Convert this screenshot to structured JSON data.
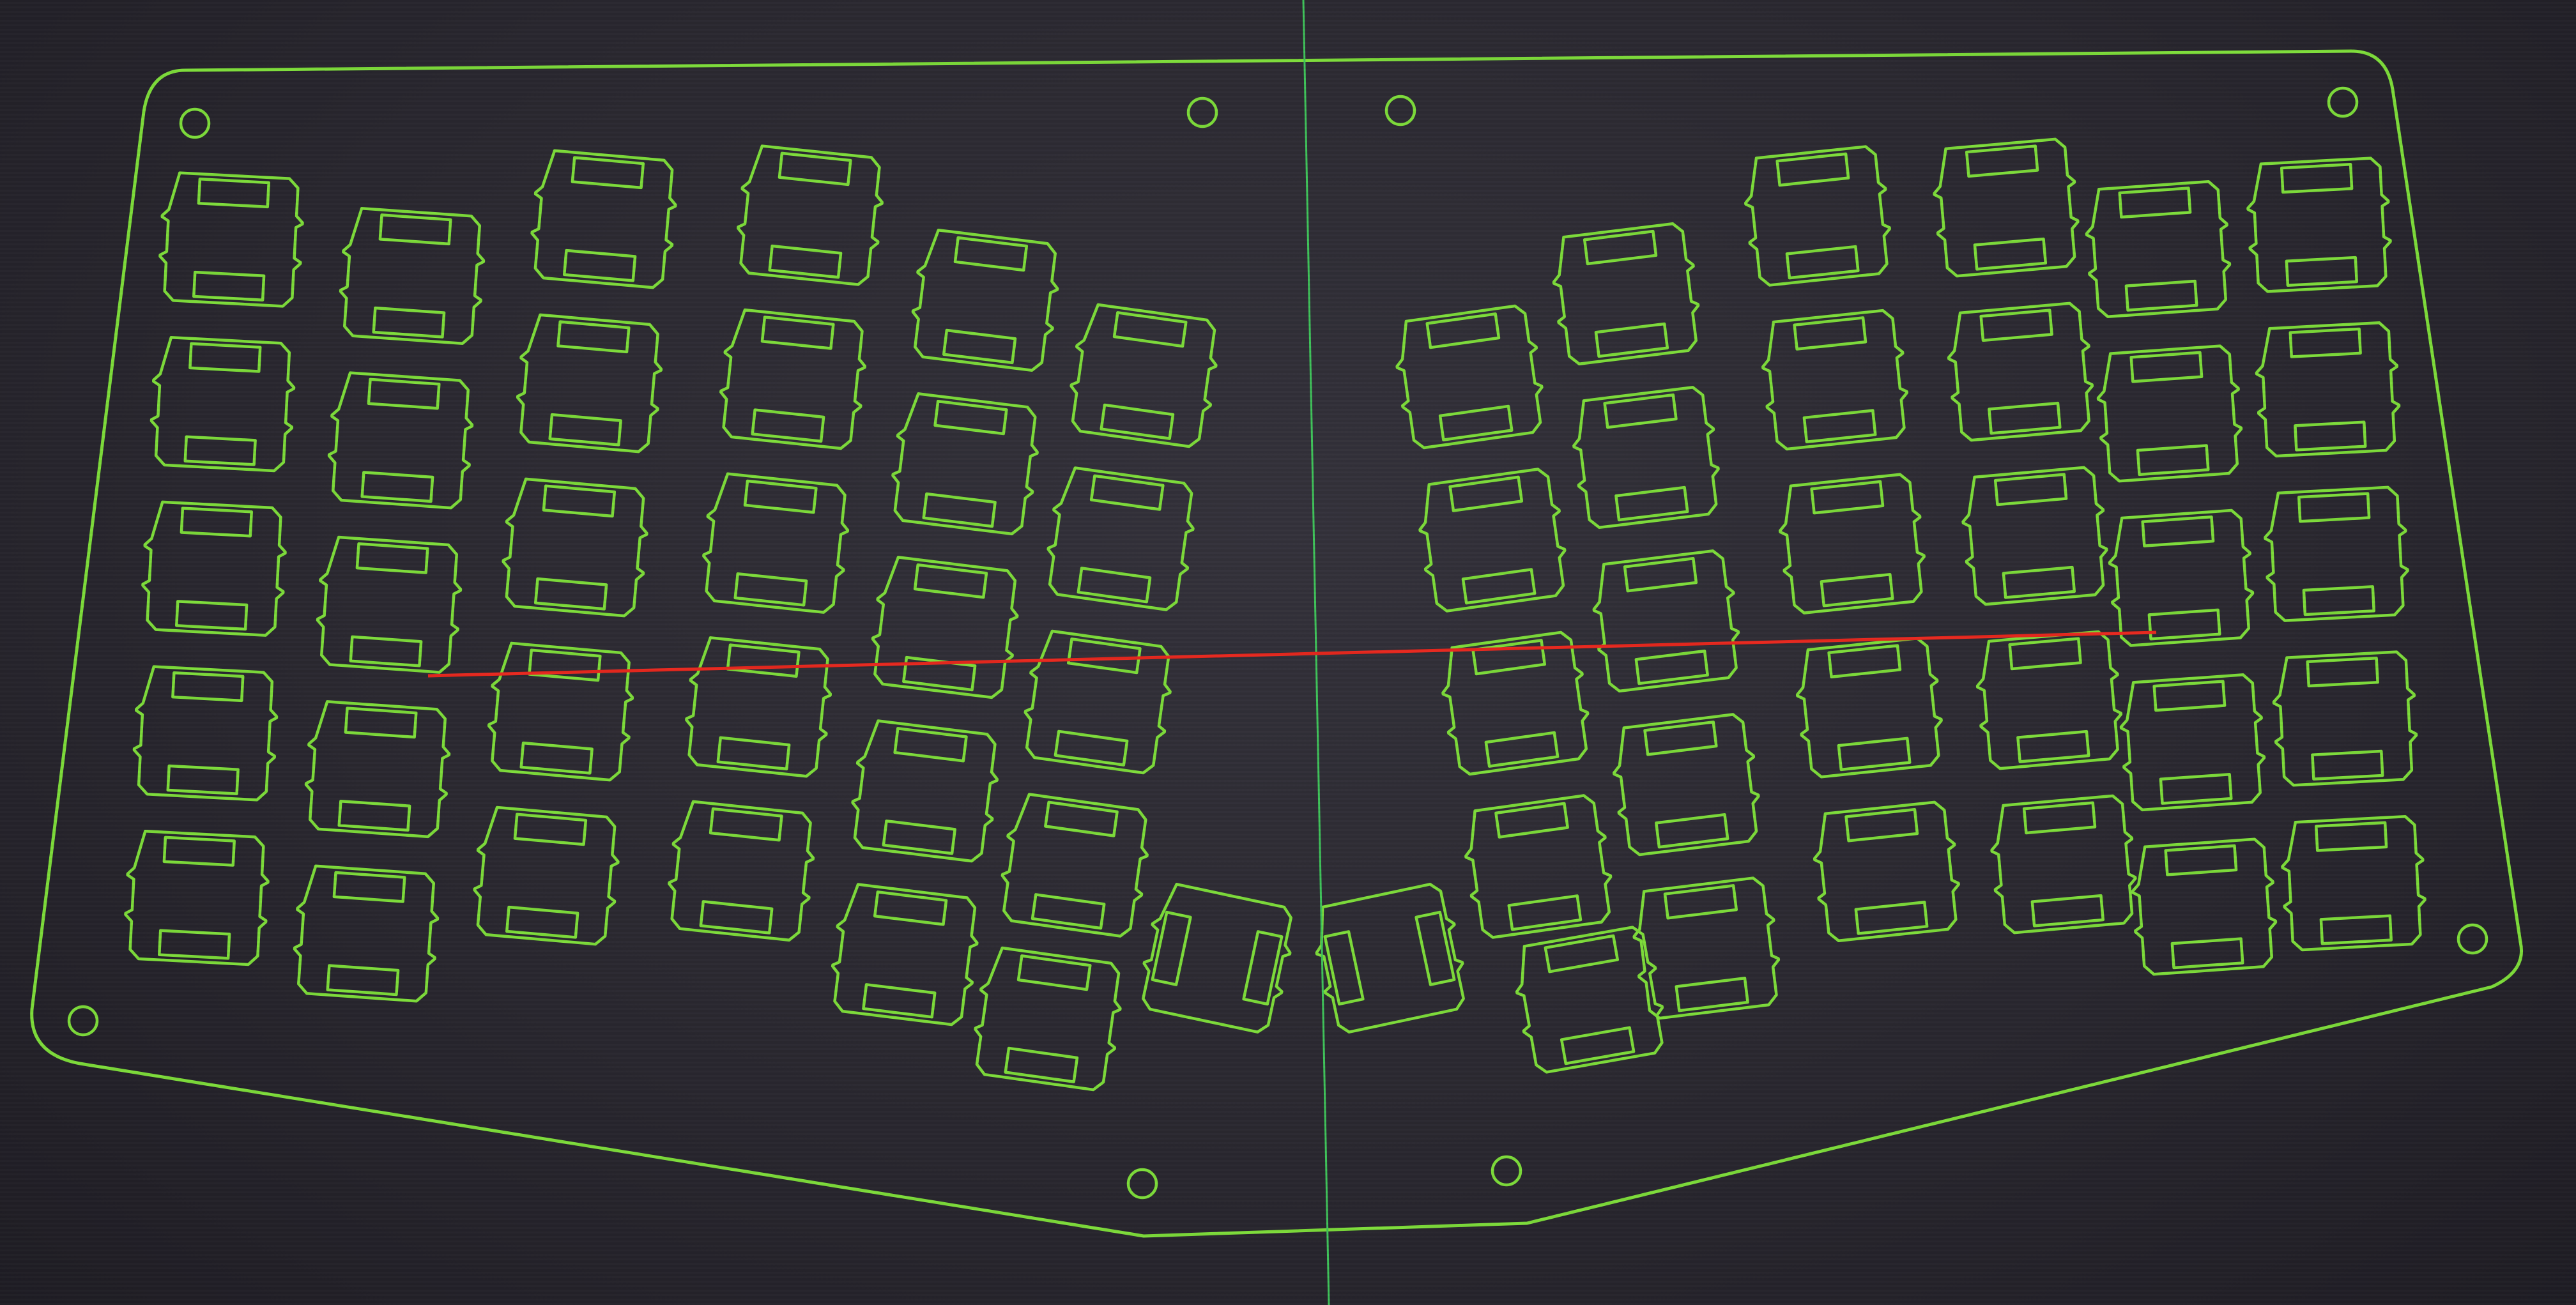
{
  "view": {
    "background_color": "#24222a",
    "plate_color": "#7ddc3a",
    "vertical_axis_color": "#3fc35a",
    "measure_line_color": "#e8281e"
  },
  "plate": {
    "left_half": {
      "key_columns": 6,
      "rows_per_column": [
        5,
        5,
        5,
        5,
        5,
        4
      ],
      "thumb_keys": 2
    },
    "right_half": {
      "key_columns": 6,
      "rows_per_column": [
        4,
        5,
        5,
        5,
        5,
        5
      ],
      "thumb_keys": 2
    },
    "mounting_holes": 8,
    "switch_cutout_icon": "mx-switch-cutout-icon",
    "mounting_hole_icon": "screw-hole-icon"
  }
}
